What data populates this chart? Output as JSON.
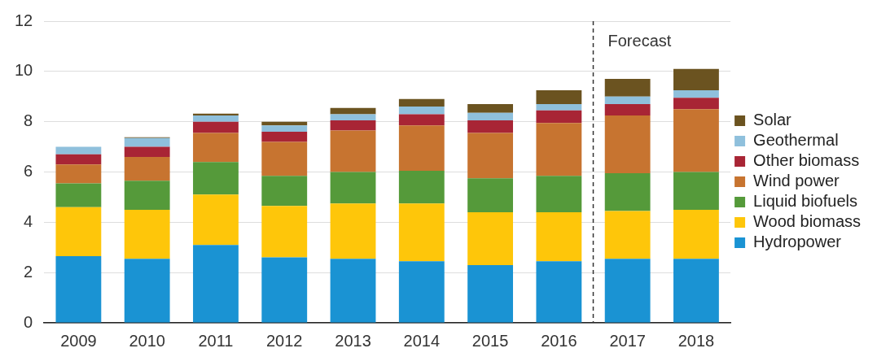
{
  "chart_data": {
    "type": "bar",
    "stacked": true,
    "categories": [
      "2009",
      "2010",
      "2011",
      "2012",
      "2013",
      "2014",
      "2015",
      "2016",
      "2017",
      "2018"
    ],
    "series": [
      {
        "name": "Hydropower",
        "color": "#1a93d3",
        "values": [
          2.65,
          2.55,
          3.1,
          2.6,
          2.55,
          2.45,
          2.3,
          2.45,
          2.55,
          2.55
        ]
      },
      {
        "name": "Wood biomass",
        "color": "#fec60a",
        "values": [
          1.95,
          1.95,
          2.0,
          2.05,
          2.2,
          2.3,
          2.1,
          1.95,
          1.9,
          1.95
        ]
      },
      {
        "name": "Liquid biofuels",
        "color": "#559a3a",
        "values": [
          0.95,
          1.15,
          1.3,
          1.2,
          1.25,
          1.3,
          1.35,
          1.45,
          1.5,
          1.5
        ]
      },
      {
        "name": "Wind power",
        "color": "#c77430",
        "values": [
          0.75,
          0.95,
          1.15,
          1.35,
          1.65,
          1.8,
          1.8,
          2.1,
          2.3,
          2.5
        ]
      },
      {
        "name": "Other biomass",
        "color": "#a82535",
        "values": [
          0.4,
          0.4,
          0.45,
          0.4,
          0.4,
          0.45,
          0.5,
          0.5,
          0.45,
          0.45
        ]
      },
      {
        "name": "Geothermal",
        "color": "#8fc0dc",
        "values": [
          0.3,
          0.35,
          0.25,
          0.25,
          0.25,
          0.3,
          0.3,
          0.25,
          0.3,
          0.3
        ]
      },
      {
        "name": "Solar",
        "color": "#6b5320",
        "values": [
          null,
          0.03,
          0.07,
          0.15,
          0.25,
          0.3,
          0.35,
          0.55,
          0.7,
          0.85
        ]
      }
    ],
    "ylim": [
      0,
      12
    ],
    "yticks": [
      0,
      2,
      4,
      6,
      8,
      10,
      12
    ],
    "grid": "y",
    "legend": "right",
    "ref_lines": [
      {
        "axis": "x",
        "value": "2017",
        "label": "Forecast",
        "line_style": "dashed",
        "color": "#333333"
      }
    ]
  }
}
